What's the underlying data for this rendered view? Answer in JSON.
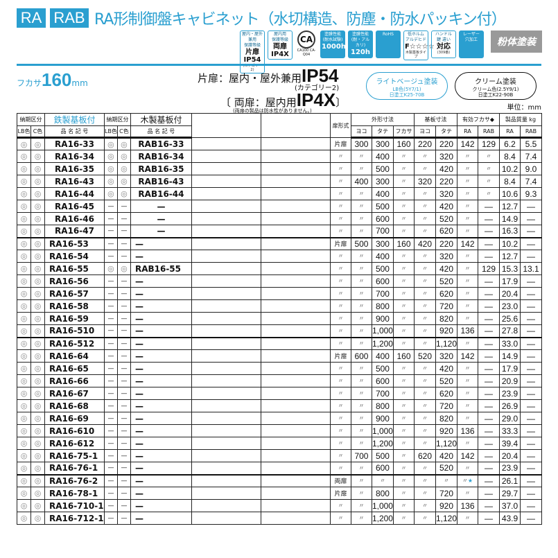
{
  "header": {
    "tags": [
      "RA",
      "RAB"
    ],
    "title": "RA形制御盤キャビネット（水切構造、防塵・防水パッキン付）",
    "badges": [
      {
        "l1": "屋内・屋外兼用",
        "l2": "保護等級",
        "v": "片扉 IP54",
        "sub": "(カテゴリー2)"
      },
      {
        "l1": "屋内用",
        "l2": "保護等級",
        "v": "両扉 IP4X",
        "sub": ""
      },
      {
        "ca": "CA",
        "sub": "CA100 CA-Q04"
      },
      {
        "l1": "塗膜性能",
        "l2": "(耐水試験)",
        "v": "1000h",
        "sub": "",
        "fill": true
      },
      {
        "l1": "塗膜性能",
        "l2": "(耐・アルカリ)",
        "v": "120h",
        "sub": "",
        "fill": true
      },
      {
        "l1": "RoHS",
        "l2": "",
        "v": "",
        "sub": "",
        "fill": true
      },
      {
        "l1": "低ホルム",
        "l2": "アルデヒド",
        "v": "F☆☆☆☆",
        "sub": "木製基板タイプ"
      },
      {
        "l1": "ハンドル",
        "l2": "鍵 違い",
        "v": "対応",
        "sub": "(309番)"
      },
      {
        "l1": "レーザー",
        "l2": "穴加工",
        "v": "",
        "sub": "",
        "fill": true
      }
    ],
    "powder": "粉体塗装"
  },
  "specs": {
    "depth_label": "フカサ",
    "depth_value": "160",
    "depth_unit": "mm",
    "single": "片扉：屋内・屋外兼用",
    "single_ip": "IP54",
    "category": "(カテゴリー2)",
    "double": "〔 両扉：屋内用",
    "double_ip": "IP4X",
    "double_close": "〕",
    "note": "(両扉の製品は防水性がありません。)",
    "lb": {
      "title": "ライトベージュ塗装",
      "l1": "LB色(5Y7/1)",
      "l2": "日塗工K25-70B"
    },
    "cream": {
      "title": "クリーム塗装",
      "l1": "クリーム色(2.5Y9/1)",
      "l2": "日塗工K22-90B"
    },
    "unit": "単位：mm"
  },
  "table": {
    "head": {
      "delivery": "納期区分",
      "steel": "鉄製基板付",
      "wood": "木製基板付",
      "lb": "LB色",
      "c": "C色",
      "code": "品 名 記 号",
      "door": "扉形式",
      "outer": "外形寸法",
      "board": "基板寸法",
      "eff": "有効フカサ◆",
      "mass": "製品質量 kg",
      "w": "ヨコ",
      "h": "タテ",
      "d": "フカサ",
      "ra": "RA",
      "rab": "RAB"
    },
    "groups": [
      0,
      8,
      16,
      27
    ],
    "rows": [
      [
        "◎",
        "◎",
        "RA16-33",
        "◎",
        "◎",
        "RAB16-33",
        "片扉",
        "300",
        "300",
        "160",
        "220",
        "220",
        "142",
        "129",
        "6.2",
        "5.5"
      ],
      [
        "◎",
        "◎",
        "RA16-34",
        "◎",
        "◎",
        "RAB16-34",
        "〃",
        "〃",
        "400",
        "〃",
        "〃",
        "320",
        "〃",
        "〃",
        "8.4",
        "7.4"
      ],
      [
        "◎",
        "◎",
        "RA16-35",
        "◎",
        "◎",
        "RAB16-35",
        "〃",
        "〃",
        "500",
        "〃",
        "〃",
        "420",
        "〃",
        "〃",
        "10.2",
        "9.0"
      ],
      [
        "◎",
        "◎",
        "RA16-43",
        "◎",
        "◎",
        "RAB16-43",
        "〃",
        "400",
        "300",
        "〃",
        "320",
        "220",
        "〃",
        "〃",
        "8.4",
        "7.4"
      ],
      [
        "◎",
        "◎",
        "RA16-44",
        "◎",
        "◎",
        "RAB16-44",
        "〃",
        "〃",
        "400",
        "〃",
        "〃",
        "320",
        "〃",
        "〃",
        "10.6",
        "9.3"
      ],
      [
        "◎",
        "◎",
        "RA16-45",
        "—",
        "—",
        "—",
        "〃",
        "〃",
        "500",
        "〃",
        "〃",
        "420",
        "〃",
        "—",
        "12.7",
        "—"
      ],
      [
        "◎",
        "◎",
        "RA16-46",
        "—",
        "—",
        "—",
        "〃",
        "〃",
        "600",
        "〃",
        "〃",
        "520",
        "〃",
        "—",
        "14.9",
        "—"
      ],
      [
        "◎",
        "◎",
        "RA16-47",
        "—",
        "—",
        "—",
        "〃",
        "〃",
        "700",
        "〃",
        "〃",
        "620",
        "〃",
        "—",
        "16.3",
        "—"
      ],
      [
        "◎",
        "◎",
        "RA16-53",
        "—",
        "—",
        "—",
        "片扉",
        "500",
        "300",
        "160",
        "420",
        "220",
        "142",
        "—",
        "10.2",
        "—"
      ],
      [
        "◎",
        "◎",
        "RA16-54",
        "—",
        "—",
        "—",
        "〃",
        "〃",
        "400",
        "〃",
        "〃",
        "320",
        "〃",
        "—",
        "12.7",
        "—"
      ],
      [
        "◎",
        "◎",
        "RA16-55",
        "◎",
        "◎",
        "RAB16-55",
        "〃",
        "〃",
        "500",
        "〃",
        "〃",
        "420",
        "〃",
        "129",
        "15.3",
        "13.1"
      ],
      [
        "◎",
        "◎",
        "RA16-56",
        "—",
        "—",
        "—",
        "〃",
        "〃",
        "600",
        "〃",
        "〃",
        "520",
        "〃",
        "—",
        "17.9",
        "—"
      ],
      [
        "◎",
        "◎",
        "RA16-57",
        "—",
        "—",
        "—",
        "〃",
        "〃",
        "700",
        "〃",
        "〃",
        "620",
        "〃",
        "—",
        "20.4",
        "—"
      ],
      [
        "◎",
        "◎",
        "RA16-58",
        "—",
        "—",
        "—",
        "〃",
        "〃",
        "800",
        "〃",
        "〃",
        "720",
        "〃",
        "—",
        "23.0",
        "—"
      ],
      [
        "◎",
        "◎",
        "RA16-59",
        "—",
        "—",
        "—",
        "〃",
        "〃",
        "900",
        "〃",
        "〃",
        "820",
        "〃",
        "—",
        "25.6",
        "—"
      ],
      [
        "◎",
        "◎",
        "RA16-510",
        "—",
        "—",
        "—",
        "〃",
        "〃",
        "1,000",
        "〃",
        "〃",
        "920",
        "136",
        "—",
        "27.8",
        "—"
      ],
      [
        "◎",
        "◎",
        "RA16-512",
        "—",
        "—",
        "—",
        "〃",
        "〃",
        "1,200",
        "〃",
        "〃",
        "1,120",
        "〃",
        "—",
        "33.0",
        "—"
      ],
      [
        "◎",
        "◎",
        "RA16-64",
        "—",
        "—",
        "—",
        "片扉",
        "600",
        "400",
        "160",
        "520",
        "320",
        "142",
        "—",
        "14.9",
        "—"
      ],
      [
        "◎",
        "◎",
        "RA16-65",
        "—",
        "—",
        "—",
        "〃",
        "〃",
        "500",
        "〃",
        "〃",
        "420",
        "〃",
        "—",
        "17.9",
        "—"
      ],
      [
        "◎",
        "◎",
        "RA16-66",
        "—",
        "—",
        "—",
        "〃",
        "〃",
        "600",
        "〃",
        "〃",
        "520",
        "〃",
        "—",
        "20.9",
        "—"
      ],
      [
        "◎",
        "◎",
        "RA16-67",
        "—",
        "—",
        "—",
        "〃",
        "〃",
        "700",
        "〃",
        "〃",
        "620",
        "〃",
        "—",
        "23.9",
        "—"
      ],
      [
        "◎",
        "◎",
        "RA16-68",
        "—",
        "—",
        "—",
        "〃",
        "〃",
        "800",
        "〃",
        "〃",
        "720",
        "〃",
        "—",
        "26.9",
        "—"
      ],
      [
        "◎",
        "◎",
        "RA16-69",
        "—",
        "—",
        "—",
        "〃",
        "〃",
        "900",
        "〃",
        "〃",
        "820",
        "〃",
        "—",
        "29.0",
        "—"
      ],
      [
        "◎",
        "◎",
        "RA16-610",
        "—",
        "—",
        "—",
        "〃",
        "〃",
        "1,000",
        "〃",
        "〃",
        "920",
        "136",
        "—",
        "33.3",
        "—"
      ],
      [
        "◎",
        "◎",
        "RA16-612",
        "—",
        "—",
        "—",
        "〃",
        "〃",
        "1,200",
        "〃",
        "〃",
        "1,120",
        "〃",
        "—",
        "39.4",
        "—"
      ],
      [
        "◎",
        "◎",
        "RA16-75-1",
        "—",
        "—",
        "—",
        "〃",
        "700",
        "500",
        "〃",
        "620",
        "420",
        "142",
        "—",
        "20.4",
        "—"
      ],
      [
        "◎",
        "◎",
        "RA16-76-1",
        "—",
        "—",
        "—",
        "〃",
        "〃",
        "600",
        "〃",
        "〃",
        "520",
        "〃",
        "—",
        "23.9",
        "—"
      ],
      [
        "◎",
        "◎",
        "RA16-76-2",
        "—",
        "—",
        "—",
        "両扉",
        "〃",
        "〃",
        "〃",
        "〃",
        "〃",
        "〃★",
        "—",
        "26.1",
        "—"
      ],
      [
        "◎",
        "◎",
        "RA16-78-1",
        "—",
        "—",
        "—",
        "片扉",
        "〃",
        "800",
        "〃",
        "〃",
        "720",
        "〃",
        "—",
        "29.7",
        "—"
      ],
      [
        "◎",
        "◎",
        "RA16-710-1",
        "—",
        "—",
        "—",
        "〃",
        "〃",
        "1,000",
        "〃",
        "〃",
        "920",
        "136",
        "—",
        "37.0",
        "—"
      ],
      [
        "◎",
        "◎",
        "RA16-712-1",
        "—",
        "—",
        "—",
        "〃",
        "〃",
        "1,200",
        "〃",
        "〃",
        "1,120",
        "〃",
        "—",
        "43.9",
        "—"
      ]
    ]
  },
  "colors": {
    "accent": "#2a9fd0",
    "powder": "#999999"
  }
}
